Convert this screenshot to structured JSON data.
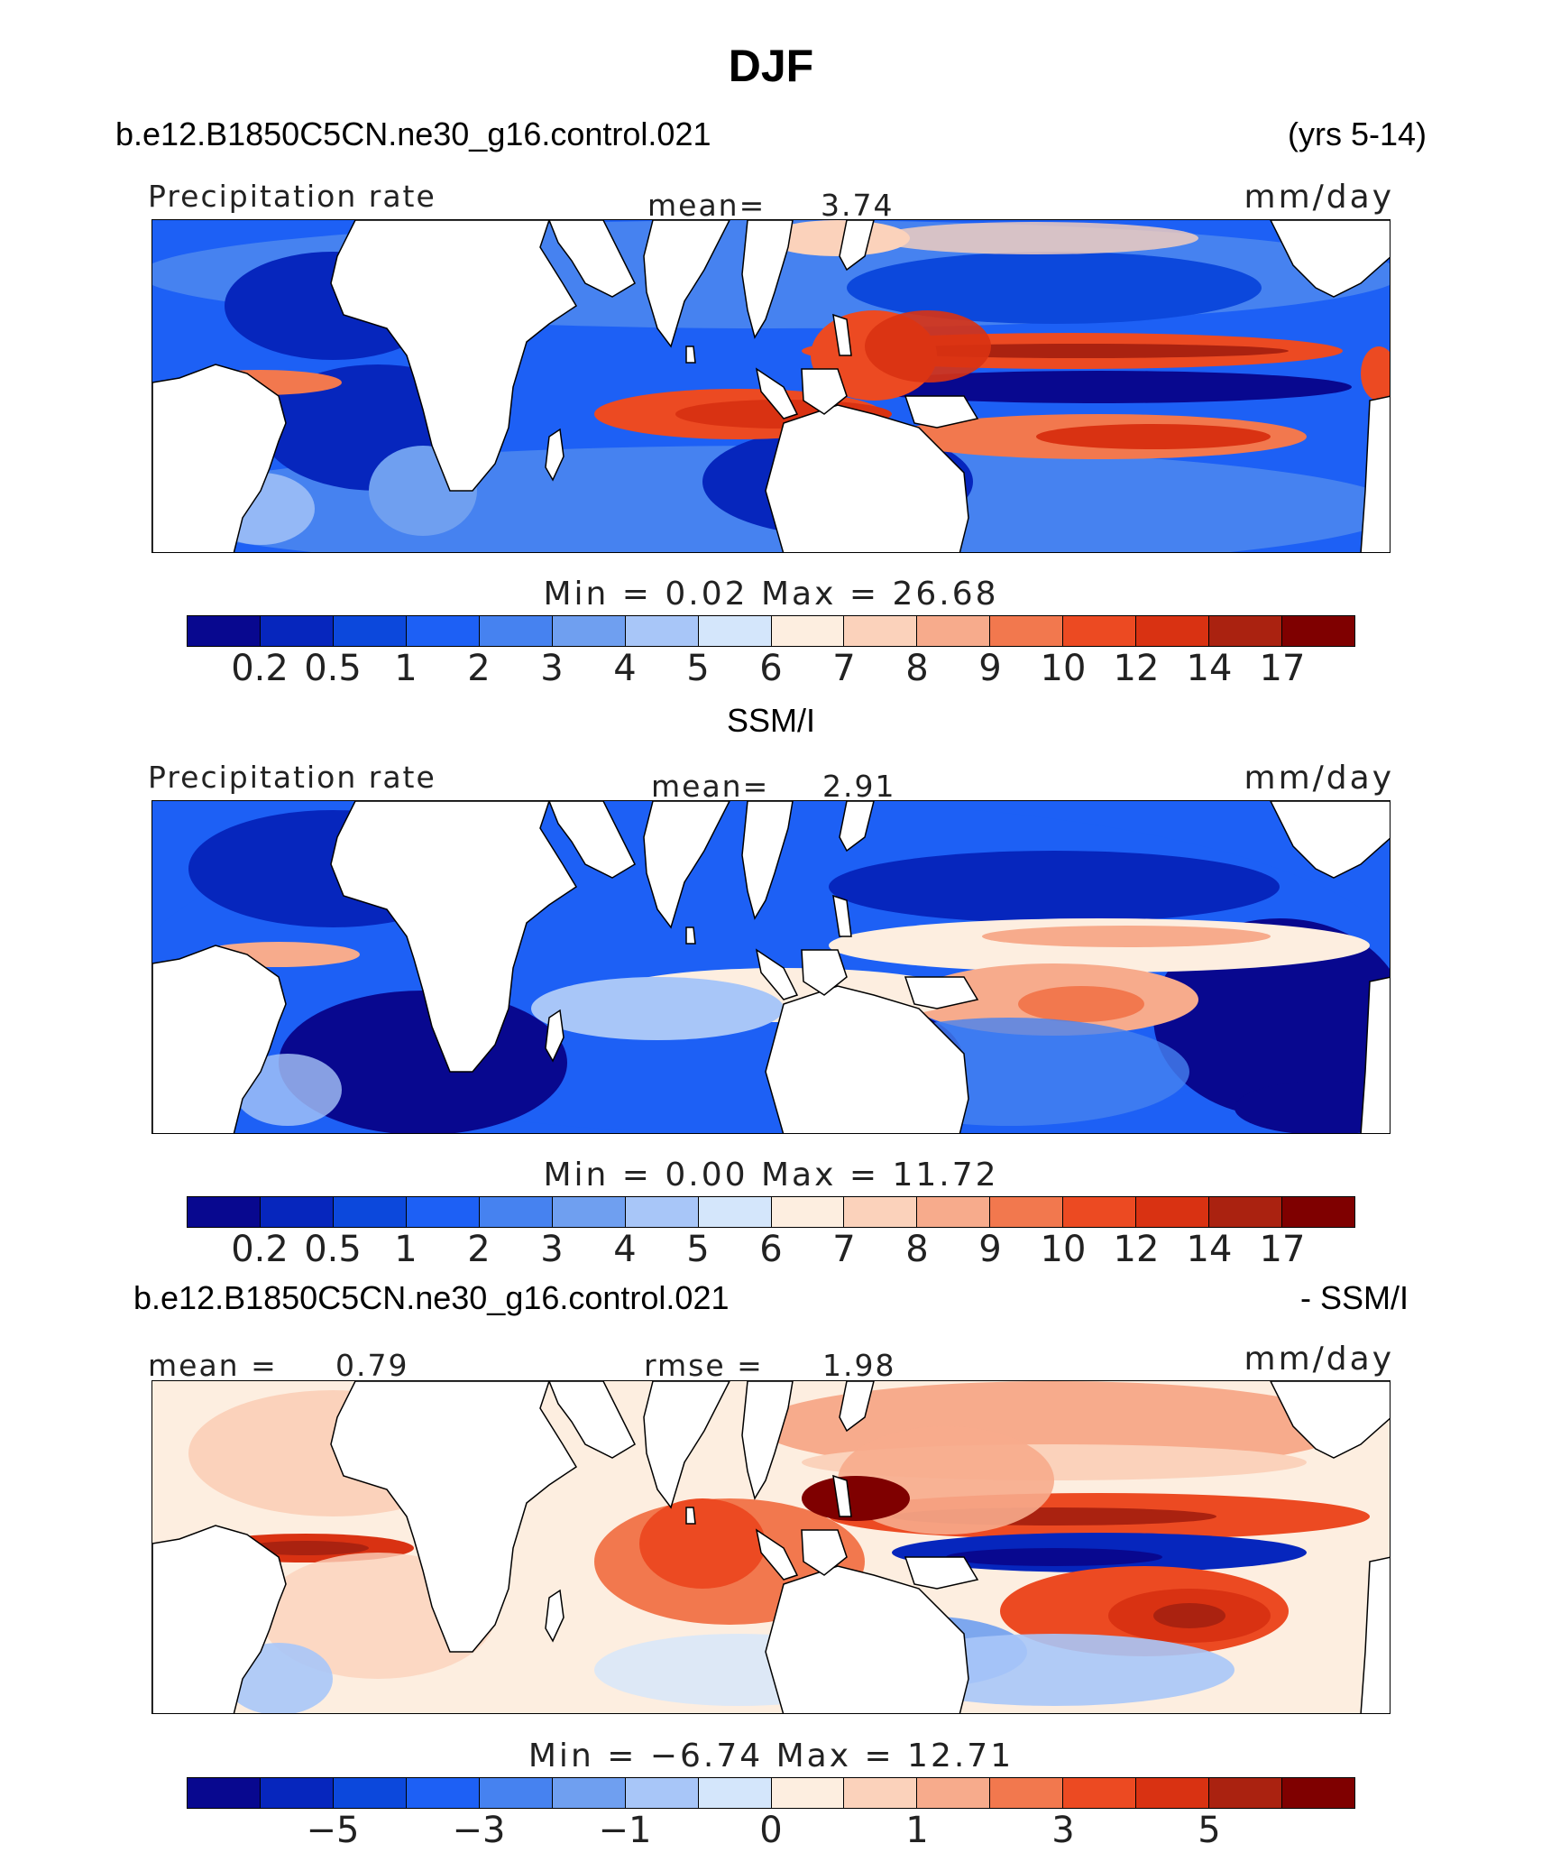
{
  "title": "DJF",
  "header": {
    "case": "b.e12.B1850C5CN.ne30_g16.control.021",
    "years": "(yrs 5-14)"
  },
  "palette": [
    "#08088f",
    "#0626bd",
    "#0c48dc",
    "#1d60f5",
    "#4682f0",
    "#6f9ff0",
    "#a8c6f8",
    "#d4e6fb",
    "#fdeee0",
    "#fbd2bb",
    "#f7ab8c",
    "#f2784e",
    "#ec4a22",
    "#d93212",
    "#aa2210",
    "#7f0000"
  ],
  "land_color": "#ffffff",
  "panels": [
    {
      "id": "model",
      "subtitle": "",
      "left_label": "Precipitation rate",
      "center_label": "mean=",
      "center_value": "3.74",
      "units": "mm/day",
      "min_text": "Min  =     0.02  Max  =   26.68",
      "ticks": [
        "0.2",
        "0.5",
        "1",
        "2",
        "3",
        "4",
        "5",
        "6",
        "7",
        "8",
        "9",
        "10",
        "12",
        "14",
        "17"
      ]
    },
    {
      "id": "obs",
      "subtitle": "SSM/I",
      "left_label": "Precipitation rate",
      "center_label": "mean=",
      "center_value": "2.91",
      "units": "mm/day",
      "min_text": "Min  =     0.00  Max  =   11.72",
      "ticks": [
        "0.2",
        "0.5",
        "1",
        "2",
        "3",
        "4",
        "5",
        "6",
        "7",
        "8",
        "9",
        "10",
        "12",
        "14",
        "17"
      ]
    },
    {
      "id": "diff",
      "subtitle_left": "b.e12.B1850C5CN.ne30_g16.control.021",
      "subtitle_right": "- SSM/I",
      "left_label": "mean =",
      "left_value": "0.79",
      "center_label": "rmse =",
      "center_value": "1.98",
      "units": "mm/day",
      "min_text": "Min  =   −6.74  Max  =   12.71",
      "ticks": [
        "−5",
        "−3",
        "−1",
        "0",
        "1",
        "3",
        "5"
      ]
    }
  ]
}
